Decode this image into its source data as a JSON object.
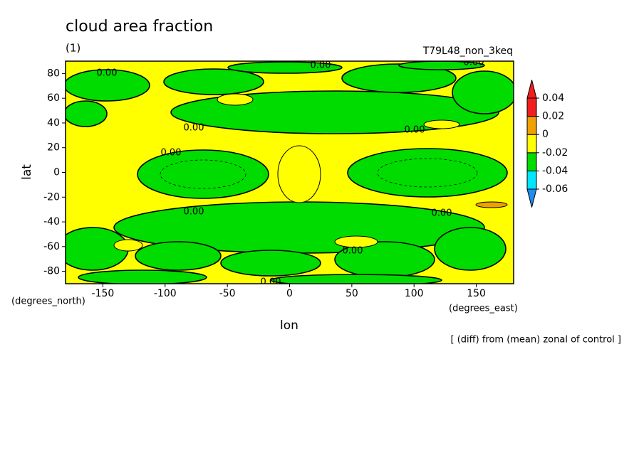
{
  "chart_data": {
    "type": "contour",
    "title": "cloud area fraction",
    "subtitle": "(1)",
    "run_label": "T79L48_non_3keq",
    "x_label": "lon",
    "y_label": "lat",
    "x_units": "(degrees_east)",
    "y_units": "(degrees_north)",
    "note": "[ (diff) from (mean) zonal of control ]",
    "xlim": [
      -180,
      180
    ],
    "ylim": [
      -90,
      90
    ],
    "xticks": [
      -150,
      -100,
      -50,
      0,
      50,
      100,
      150
    ],
    "yticks": [
      -80,
      -60,
      -40,
      -20,
      0,
      20,
      40,
      60,
      80
    ],
    "levels": [
      -0.06,
      -0.04,
      -0.02,
      0,
      0.02,
      0.04
    ],
    "colors": [
      "#1e8cf0",
      "#00e6ff",
      "#00dc00",
      "#ffff00",
      "#f0a000",
      "#f01e1e"
    ],
    "contour_labels": [
      "0.00",
      "0.00",
      "0.00",
      "0.00",
      "0.00",
      "0.00",
      "0.00",
      "0.00",
      "0.00",
      "0.00"
    ]
  }
}
